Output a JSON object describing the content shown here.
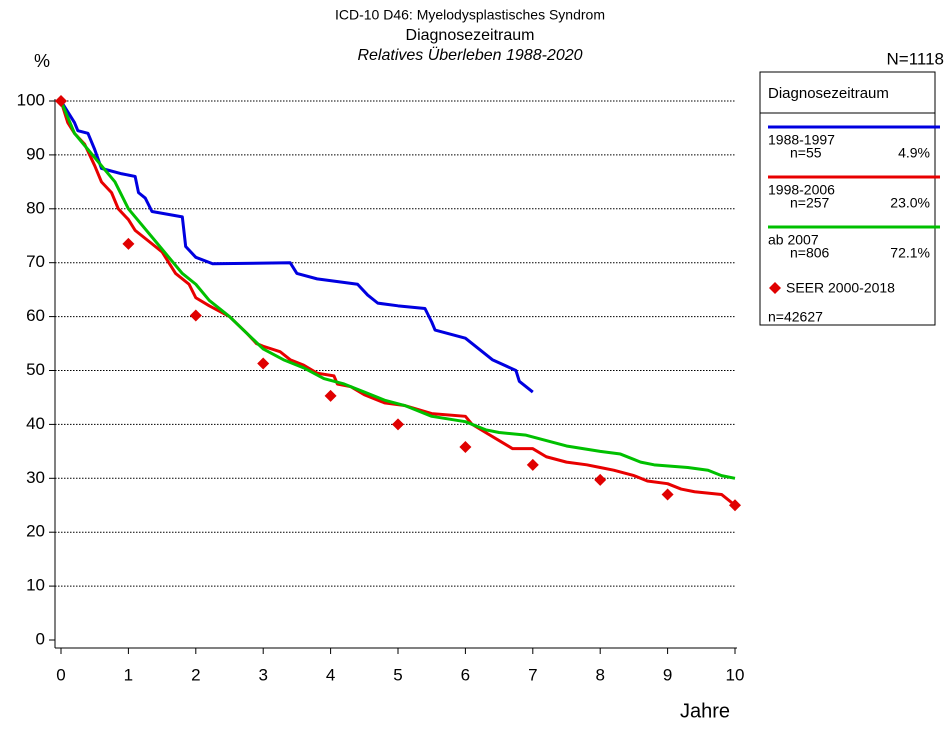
{
  "chart_data": {
    "type": "line",
    "title": "ICD-10 D46: Myelodysplastisches Syndrom",
    "subtitle": "Diagnosezeitraum",
    "caption": "Relatives Überleben 1988-2020",
    "y_label": "%",
    "x_label": "Jahre",
    "total_label": "N=1118",
    "legend_title": "Diagnosezeitraum",
    "xlim": [
      0,
      10
    ],
    "ylim": [
      0,
      100
    ],
    "xticks": [
      0,
      1,
      2,
      3,
      4,
      5,
      6,
      7,
      8,
      9,
      10
    ],
    "yticks": [
      0,
      10,
      20,
      30,
      40,
      50,
      60,
      70,
      80,
      90,
      100
    ],
    "grid": true,
    "series": [
      {
        "type": "line",
        "name": "1988-1997",
        "n_label": "n=55",
        "share_label": "4.9%",
        "color": "#0000e0",
        "x": [
          0,
          0.1,
          0.2,
          0.25,
          0.4,
          0.5,
          0.6,
          0.9,
          1.1,
          1.15,
          1.25,
          1.35,
          1.8,
          1.85,
          2.0,
          2.25,
          3.4,
          3.5,
          3.8,
          4.4,
          4.55,
          4.7,
          5.0,
          5.4,
          5.5,
          5.55,
          6.0,
          6.2,
          6.4,
          6.75,
          6.8,
          7.0
        ],
        "values": [
          100,
          98,
          96,
          94.5,
          94,
          91,
          87.5,
          86.5,
          86,
          83,
          82,
          79.5,
          78.5,
          73,
          71,
          69.8,
          70,
          68,
          67,
          66,
          64,
          62.5,
          62,
          61.5,
          59,
          57.5,
          56,
          54,
          52,
          50,
          48,
          46
        ]
      },
      {
        "type": "line",
        "name": "1998-2006",
        "n_label": "n=257",
        "share_label": "23.0%",
        "color": "#e80000",
        "x": [
          0,
          0.1,
          0.2,
          0.35,
          0.5,
          0.6,
          0.75,
          0.85,
          1.0,
          1.1,
          1.3,
          1.5,
          1.7,
          1.9,
          2.0,
          2.2,
          2.5,
          2.75,
          2.9,
          3.0,
          3.25,
          3.4,
          3.6,
          3.8,
          4.05,
          4.1,
          4.3,
          4.5,
          4.8,
          5.1,
          5.5,
          6.0,
          6.1,
          6.3,
          6.5,
          6.7,
          7.0,
          7.2,
          7.5,
          7.8,
          8.0,
          8.2,
          8.5,
          8.7,
          9.0,
          9.2,
          9.4,
          9.8,
          10
        ],
        "values": [
          100,
          96,
          94,
          92,
          88,
          85,
          83,
          80,
          78,
          76,
          74,
          72,
          68,
          66,
          63.5,
          62,
          60,
          57,
          55,
          54.5,
          53.5,
          52,
          51,
          49.5,
          49,
          47.5,
          47,
          45.5,
          44,
          43.5,
          42,
          41.5,
          40,
          38.5,
          37,
          35.5,
          35.5,
          34,
          33,
          32.5,
          32,
          31.5,
          30.5,
          29.5,
          29,
          28,
          27.5,
          27,
          25
        ]
      },
      {
        "type": "line",
        "name": "ab 2007",
        "n_label": "n=806",
        "share_label": "72.1%",
        "color": "#00c000",
        "x": [
          0,
          0.1,
          0.2,
          0.4,
          0.6,
          0.8,
          1.0,
          1.2,
          1.4,
          1.6,
          1.8,
          2.0,
          2.2,
          2.5,
          2.75,
          3.0,
          3.3,
          3.6,
          3.9,
          4.2,
          4.5,
          4.8,
          5.1,
          5.5,
          6.0,
          6.3,
          6.5,
          6.9,
          7.2,
          7.5,
          8.0,
          8.3,
          8.6,
          8.8,
          9.3,
          9.6,
          9.8,
          10
        ],
        "values": [
          100,
          97,
          94,
          91,
          88,
          85,
          80,
          77,
          74,
          71,
          68,
          66,
          63,
          60,
          57,
          54,
          52,
          50.5,
          48.5,
          47.5,
          46,
          44.5,
          43.5,
          41.5,
          40.5,
          39,
          38.5,
          38,
          37,
          36,
          35,
          34.5,
          33,
          32.5,
          32,
          31.5,
          30.5,
          30
        ]
      },
      {
        "type": "scatter",
        "name": "SEER 2000-2018",
        "n_label": "n=42627",
        "color": "#e00000",
        "x": [
          0,
          1,
          2,
          3,
          4,
          5,
          6,
          7,
          8,
          9,
          10
        ],
        "values": [
          100,
          73.5,
          60.2,
          51.3,
          45.3,
          40,
          35.8,
          32.5,
          29.7,
          27,
          25
        ]
      }
    ]
  }
}
